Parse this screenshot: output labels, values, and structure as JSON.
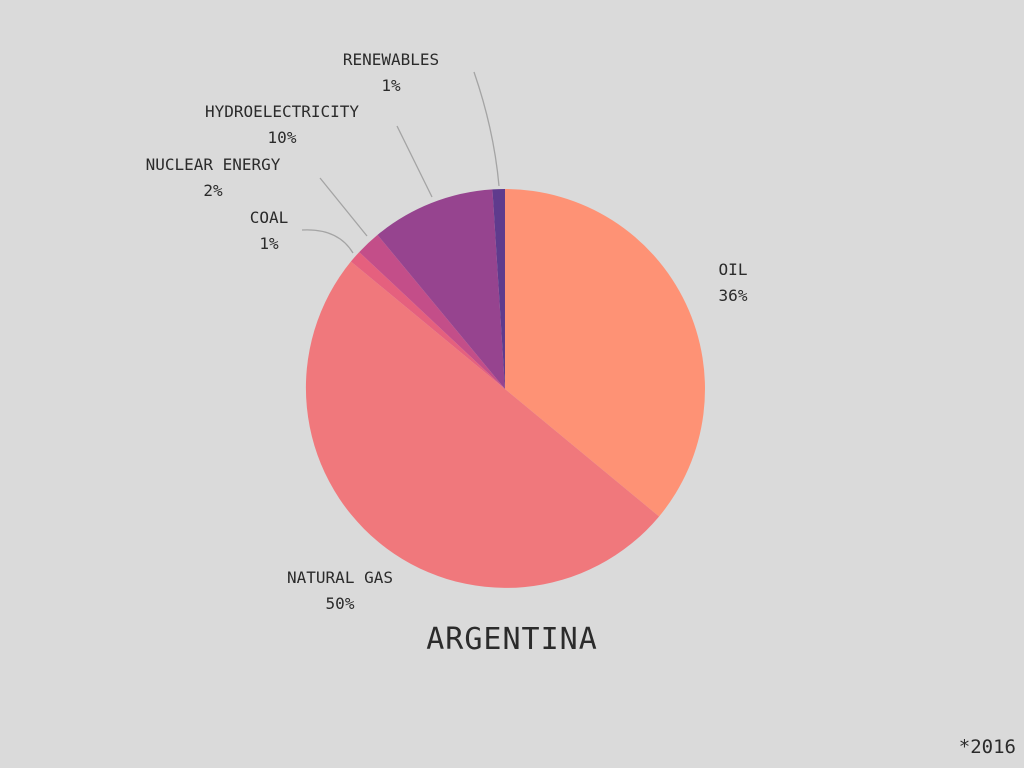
{
  "chart_data": {
    "type": "pie",
    "title": "ARGENTINA",
    "footnote": "*2016",
    "slices": [
      {
        "name": "OIL",
        "value": 36,
        "label": "36%",
        "color": "#fe9275"
      },
      {
        "name": "NATURAL GAS",
        "value": 50,
        "label": "50%",
        "color": "#f0787c"
      },
      {
        "name": "COAL",
        "value": 1,
        "label": "1%",
        "color": "#e5607e"
      },
      {
        "name": "NUCLEAR ENERGY",
        "value": 2,
        "label": "2%",
        "color": "#c34e89"
      },
      {
        "name": "HYDROELECTRICITY",
        "value": 10,
        "label": "10%",
        "color": "#96448f"
      },
      {
        "name": "RENEWABLES",
        "value": 1,
        "label": "1%",
        "color": "#5f3b8d"
      }
    ]
  }
}
